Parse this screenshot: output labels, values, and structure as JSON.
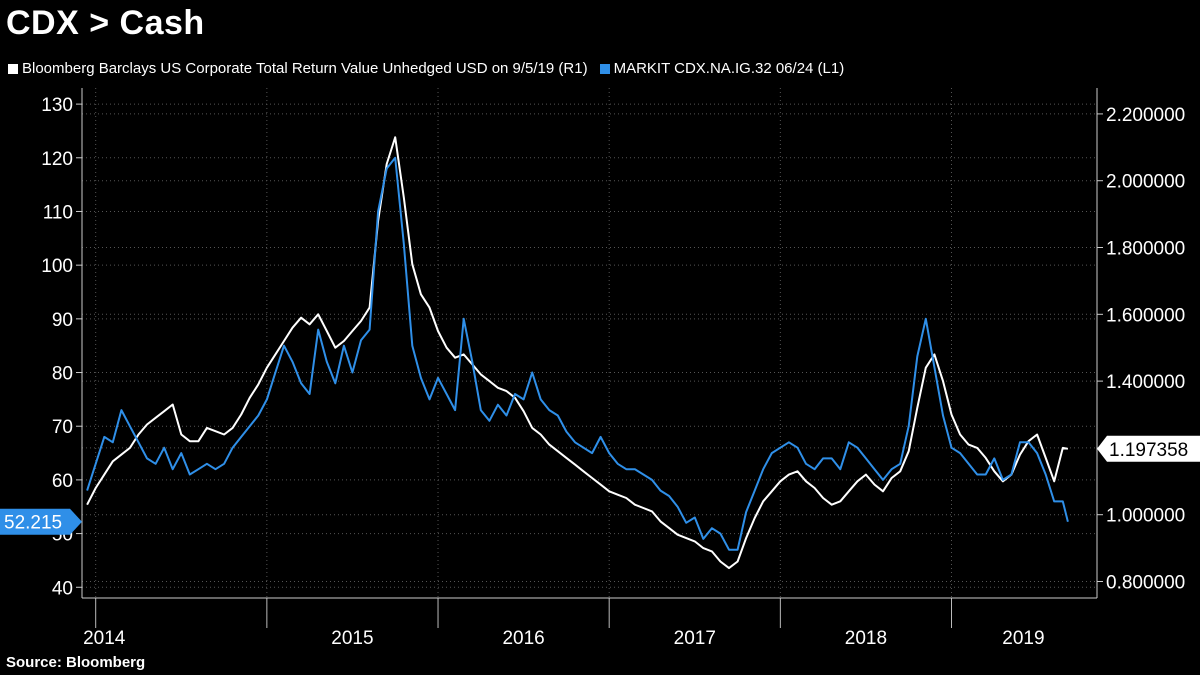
{
  "title": "CDX > Cash",
  "source": "Source: Bloomberg",
  "chart_data": {
    "type": "line",
    "series": [
      {
        "name": "Bloomberg Barclays US Corporate Total Return Value Unhedged USD on 9/5/19 (R1)",
        "color": "#ffffff",
        "axis": "right",
        "last_value_label": "1.197358",
        "x": [
          2013.95,
          2014.0,
          2014.05,
          2014.1,
          2014.15,
          2014.2,
          2014.25,
          2014.3,
          2014.35,
          2014.4,
          2014.45,
          2014.5,
          2014.55,
          2014.6,
          2014.65,
          2014.7,
          2014.75,
          2014.8,
          2014.85,
          2014.9,
          2014.95,
          2015.0,
          2015.05,
          2015.1,
          2015.15,
          2015.2,
          2015.25,
          2015.3,
          2015.35,
          2015.4,
          2015.45,
          2015.5,
          2015.55,
          2015.6,
          2015.65,
          2015.7,
          2015.75,
          2015.8,
          2015.85,
          2015.9,
          2015.95,
          2016.0,
          2016.05,
          2016.1,
          2016.15,
          2016.2,
          2016.25,
          2016.3,
          2016.35,
          2016.4,
          2016.45,
          2016.5,
          2016.55,
          2016.6,
          2016.65,
          2016.7,
          2016.75,
          2016.8,
          2016.85,
          2016.9,
          2016.95,
          2017.0,
          2017.05,
          2017.1,
          2017.15,
          2017.2,
          2017.25,
          2017.3,
          2017.35,
          2017.4,
          2017.45,
          2017.5,
          2017.55,
          2017.6,
          2017.65,
          2017.7,
          2017.75,
          2017.8,
          2017.85,
          2017.9,
          2017.95,
          2018.0,
          2018.05,
          2018.1,
          2018.15,
          2018.2,
          2018.25,
          2018.3,
          2018.35,
          2018.4,
          2018.45,
          2018.5,
          2018.55,
          2018.6,
          2018.65,
          2018.7,
          2018.75,
          2018.8,
          2018.85,
          2018.9,
          2018.95,
          2019.0,
          2019.05,
          2019.1,
          2019.15,
          2019.2,
          2019.25,
          2019.3,
          2019.35,
          2019.4,
          2019.45,
          2019.5,
          2019.55,
          2019.6,
          2019.65,
          2019.68
        ],
        "values": [
          1.03,
          1.08,
          1.12,
          1.16,
          1.18,
          1.2,
          1.24,
          1.27,
          1.29,
          1.31,
          1.33,
          1.24,
          1.22,
          1.22,
          1.26,
          1.25,
          1.24,
          1.26,
          1.3,
          1.35,
          1.39,
          1.44,
          1.48,
          1.52,
          1.56,
          1.59,
          1.57,
          1.6,
          1.55,
          1.5,
          1.52,
          1.55,
          1.58,
          1.62,
          1.88,
          2.05,
          2.13,
          1.95,
          1.75,
          1.66,
          1.62,
          1.55,
          1.5,
          1.47,
          1.48,
          1.45,
          1.42,
          1.4,
          1.38,
          1.37,
          1.35,
          1.31,
          1.26,
          1.24,
          1.21,
          1.19,
          1.17,
          1.15,
          1.13,
          1.11,
          1.09,
          1.07,
          1.06,
          1.05,
          1.03,
          1.02,
          1.01,
          0.98,
          0.96,
          0.94,
          0.93,
          0.92,
          0.9,
          0.89,
          0.86,
          0.84,
          0.86,
          0.93,
          0.99,
          1.04,
          1.07,
          1.1,
          1.12,
          1.13,
          1.1,
          1.08,
          1.05,
          1.03,
          1.04,
          1.07,
          1.1,
          1.12,
          1.09,
          1.07,
          1.11,
          1.13,
          1.19,
          1.32,
          1.44,
          1.48,
          1.4,
          1.3,
          1.24,
          1.21,
          1.2,
          1.17,
          1.13,
          1.1,
          1.12,
          1.18,
          1.22,
          1.24,
          1.17,
          1.1,
          1.2,
          1.197358
        ]
      },
      {
        "name": "MARKIT CDX.NA.IG.32 06/24 (L1)",
        "color": "#2f8fe8",
        "axis": "left",
        "last_value_label": "52.215",
        "x": [
          2013.95,
          2014.0,
          2014.05,
          2014.1,
          2014.15,
          2014.2,
          2014.25,
          2014.3,
          2014.35,
          2014.4,
          2014.45,
          2014.5,
          2014.55,
          2014.6,
          2014.65,
          2014.7,
          2014.75,
          2014.8,
          2014.85,
          2014.9,
          2014.95,
          2015.0,
          2015.05,
          2015.1,
          2015.15,
          2015.2,
          2015.25,
          2015.3,
          2015.35,
          2015.4,
          2015.45,
          2015.5,
          2015.55,
          2015.6,
          2015.65,
          2015.7,
          2015.75,
          2015.8,
          2015.85,
          2015.9,
          2015.95,
          2016.0,
          2016.05,
          2016.1,
          2016.15,
          2016.2,
          2016.25,
          2016.3,
          2016.35,
          2016.4,
          2016.45,
          2016.5,
          2016.55,
          2016.6,
          2016.65,
          2016.7,
          2016.75,
          2016.8,
          2016.85,
          2016.9,
          2016.95,
          2017.0,
          2017.05,
          2017.1,
          2017.15,
          2017.2,
          2017.25,
          2017.3,
          2017.35,
          2017.4,
          2017.45,
          2017.5,
          2017.55,
          2017.6,
          2017.65,
          2017.7,
          2017.75,
          2017.8,
          2017.85,
          2017.9,
          2017.95,
          2018.0,
          2018.05,
          2018.1,
          2018.15,
          2018.2,
          2018.25,
          2018.3,
          2018.35,
          2018.4,
          2018.45,
          2018.5,
          2018.55,
          2018.6,
          2018.65,
          2018.7,
          2018.75,
          2018.8,
          2018.85,
          2018.9,
          2018.95,
          2019.0,
          2019.05,
          2019.1,
          2019.15,
          2019.2,
          2019.25,
          2019.3,
          2019.35,
          2019.4,
          2019.45,
          2019.5,
          2019.55,
          2019.6,
          2019.65,
          2019.68
        ],
        "values": [
          58,
          63,
          68,
          67,
          73,
          70,
          67,
          64,
          63,
          66,
          62,
          65,
          61,
          62,
          63,
          62,
          63,
          66,
          68,
          70,
          72,
          75,
          80,
          85,
          82,
          78,
          76,
          88,
          82,
          78,
          85,
          80,
          86,
          88,
          110,
          118,
          120,
          104,
          85,
          79,
          75,
          79,
          76,
          73,
          90,
          82,
          73,
          71,
          74,
          72,
          76,
          75,
          80,
          75,
          73,
          72,
          69,
          67,
          66,
          65,
          68,
          65,
          63,
          62,
          62,
          61,
          60,
          58,
          57,
          55,
          52,
          53,
          49,
          51,
          50,
          47,
          47,
          54,
          58,
          62,
          65,
          66,
          67,
          66,
          63,
          62,
          64,
          64,
          62,
          67,
          66,
          64,
          62,
          60,
          62,
          63,
          70,
          83,
          90,
          81,
          72,
          66,
          65,
          63,
          61,
          61,
          64,
          60,
          61,
          67,
          67,
          65,
          61,
          56,
          56,
          52.215
        ]
      }
    ],
    "x_tick_labels": [
      "2014",
      "2015",
      "2016",
      "2017",
      "2018",
      "2019"
    ],
    "x_label_positions": [
      2014.05,
      2015.5,
      2016.5,
      2017.5,
      2018.5,
      2019.42
    ],
    "year_boundaries": [
      2014.0,
      2015.0,
      2016.0,
      2017.0,
      2018.0,
      2019.0
    ],
    "x_range": [
      2013.92,
      2019.85
    ],
    "left_axis": {
      "ylim": [
        38,
        133
      ],
      "ticks": [
        40,
        50,
        60,
        70,
        80,
        90,
        100,
        110,
        120,
        130
      ],
      "tick_labels": [
        "40",
        "50",
        "60",
        "70",
        "80",
        "90",
        "100",
        "110",
        "120",
        "130"
      ]
    },
    "right_axis": {
      "ylim": [
        0.7506,
        2.2776
      ],
      "ticks": [
        0.8,
        1.0,
        1.2,
        1.4,
        1.6,
        1.8,
        2.0,
        2.2
      ],
      "tick_labels": [
        "0.800000",
        "1.000000",
        "1.200000",
        "1.400000",
        "1.600000",
        "1.800000",
        "2.000000",
        "2.200000"
      ]
    },
    "legend_position": "top-left",
    "grid": true
  }
}
